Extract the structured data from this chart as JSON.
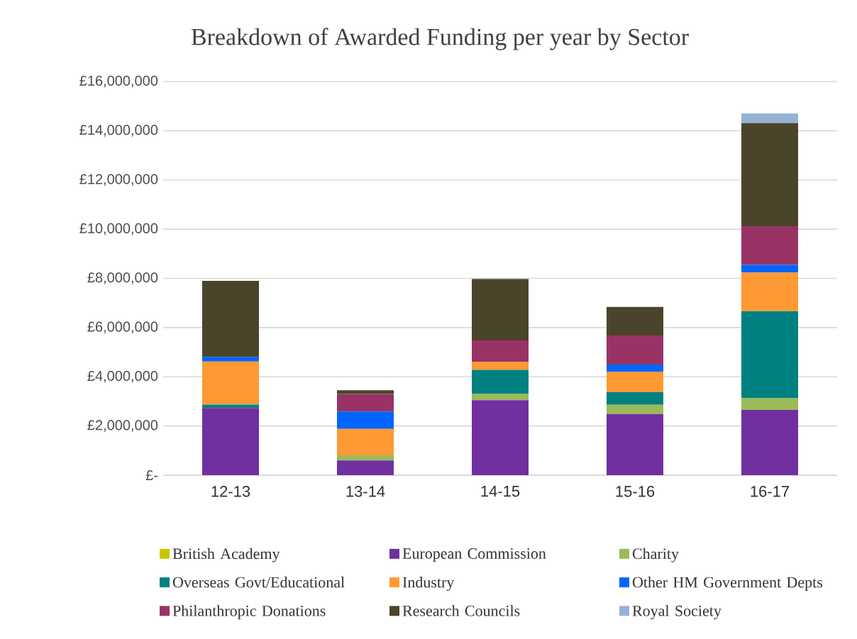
{
  "chart_data": {
    "type": "bar",
    "stacked": true,
    "title": "Breakdown of Awarded Funding per year by Sector",
    "categories": [
      "12-13",
      "13-14",
      "14-15",
      "15-16",
      "16-17"
    ],
    "series": [
      {
        "name": "British Academy",
        "color": "#c8c800",
        "values": [
          0,
          0,
          0,
          0,
          0
        ]
      },
      {
        "name": "European Commission",
        "color": "#7030a0",
        "values": [
          2730000,
          600000,
          3050000,
          2490000,
          2650000
        ]
      },
      {
        "name": "Charity",
        "color": "#9bbb59",
        "values": [
          0,
          210000,
          250000,
          370000,
          480000
        ]
      },
      {
        "name": "Overseas Govt/Educational",
        "color": "#008080",
        "values": [
          140000,
          0,
          980000,
          510000,
          3540000
        ]
      },
      {
        "name": "Industry",
        "color": "#ff9933",
        "values": [
          1750000,
          1070000,
          330000,
          840000,
          1570000
        ]
      },
      {
        "name": "Other HM Government Depts",
        "color": "#0066ff",
        "values": [
          190000,
          710000,
          0,
          290000,
          310000
        ]
      },
      {
        "name": "Philanthropic Donations",
        "color": "#993366",
        "values": [
          0,
          710000,
          870000,
          1180000,
          1570000
        ]
      },
      {
        "name": "Research Councils",
        "color": "#4a452a",
        "values": [
          3090000,
          150000,
          2490000,
          1160000,
          4190000
        ]
      },
      {
        "name": "Royal Society",
        "color": "#95b3d7",
        "values": [
          0,
          0,
          20000,
          0,
          390000
        ]
      }
    ],
    "ylim": [
      0,
      16000000
    ],
    "yticks": [
      {
        "value": 0,
        "label": "£-"
      },
      {
        "value": 2000000,
        "label": "£2,000,000"
      },
      {
        "value": 4000000,
        "label": "£4,000,000"
      },
      {
        "value": 6000000,
        "label": "£6,000,000"
      },
      {
        "value": 8000000,
        "label": "£8,000,000"
      },
      {
        "value": 10000000,
        "label": "£10,000,000"
      },
      {
        "value": 12000000,
        "label": "£12,000,000"
      },
      {
        "value": 14000000,
        "label": "£14,000,000"
      },
      {
        "value": 16000000,
        "label": "£16,000,000"
      }
    ],
    "grid": "y",
    "legend": "bottom"
  }
}
